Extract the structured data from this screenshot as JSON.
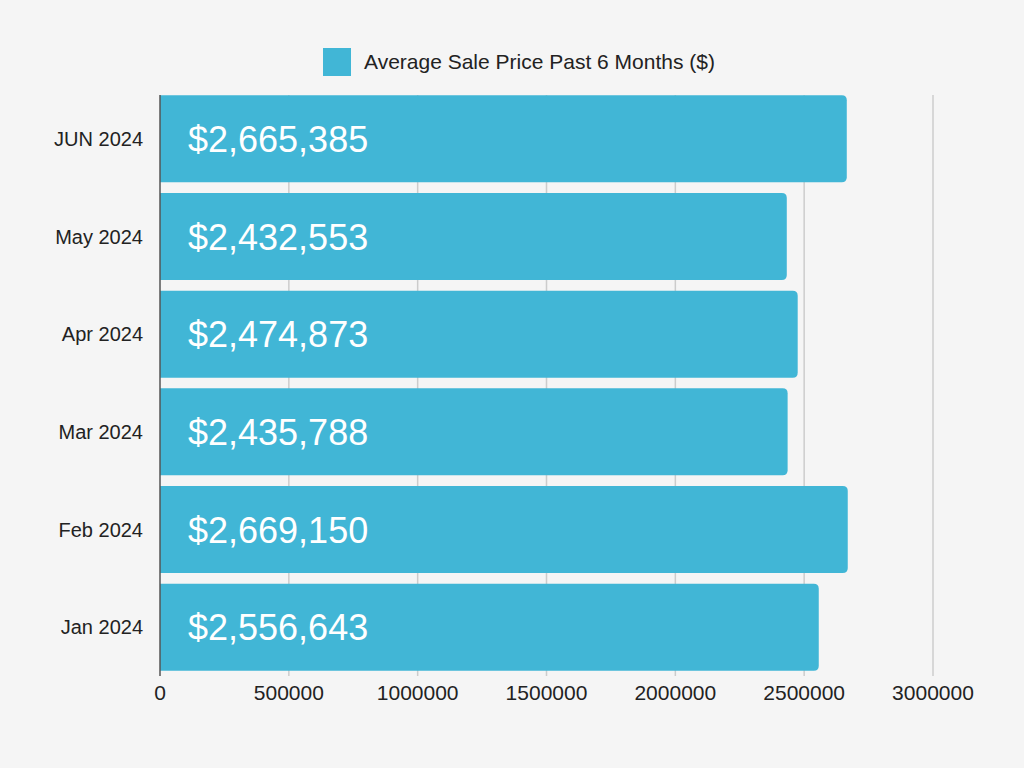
{
  "chart_data": {
    "type": "bar",
    "orientation": "horizontal",
    "categories": [
      "Jan 2024",
      "Feb 2024",
      "Mar 2024",
      "Apr 2024",
      "May 2024",
      "JUN 2024"
    ],
    "series": [
      {
        "name": "Average Sale Price Past 6 Months ($)",
        "color": "#41b6d6",
        "values": [
          2556643,
          2669150,
          2435788,
          2474873,
          2432553,
          2665385
        ],
        "value_labels": [
          "$2,556,643",
          "$2,669,150",
          "$2,435,788",
          "$2,474,873",
          "$2,432,553",
          "$2,665,385"
        ]
      }
    ],
    "xlim": [
      0,
      3000000
    ],
    "xticks": [
      0,
      500000,
      1000000,
      1500000,
      2000000,
      2500000,
      3000000
    ],
    "grid": true,
    "legend": "top",
    "data_labels": true
  }
}
